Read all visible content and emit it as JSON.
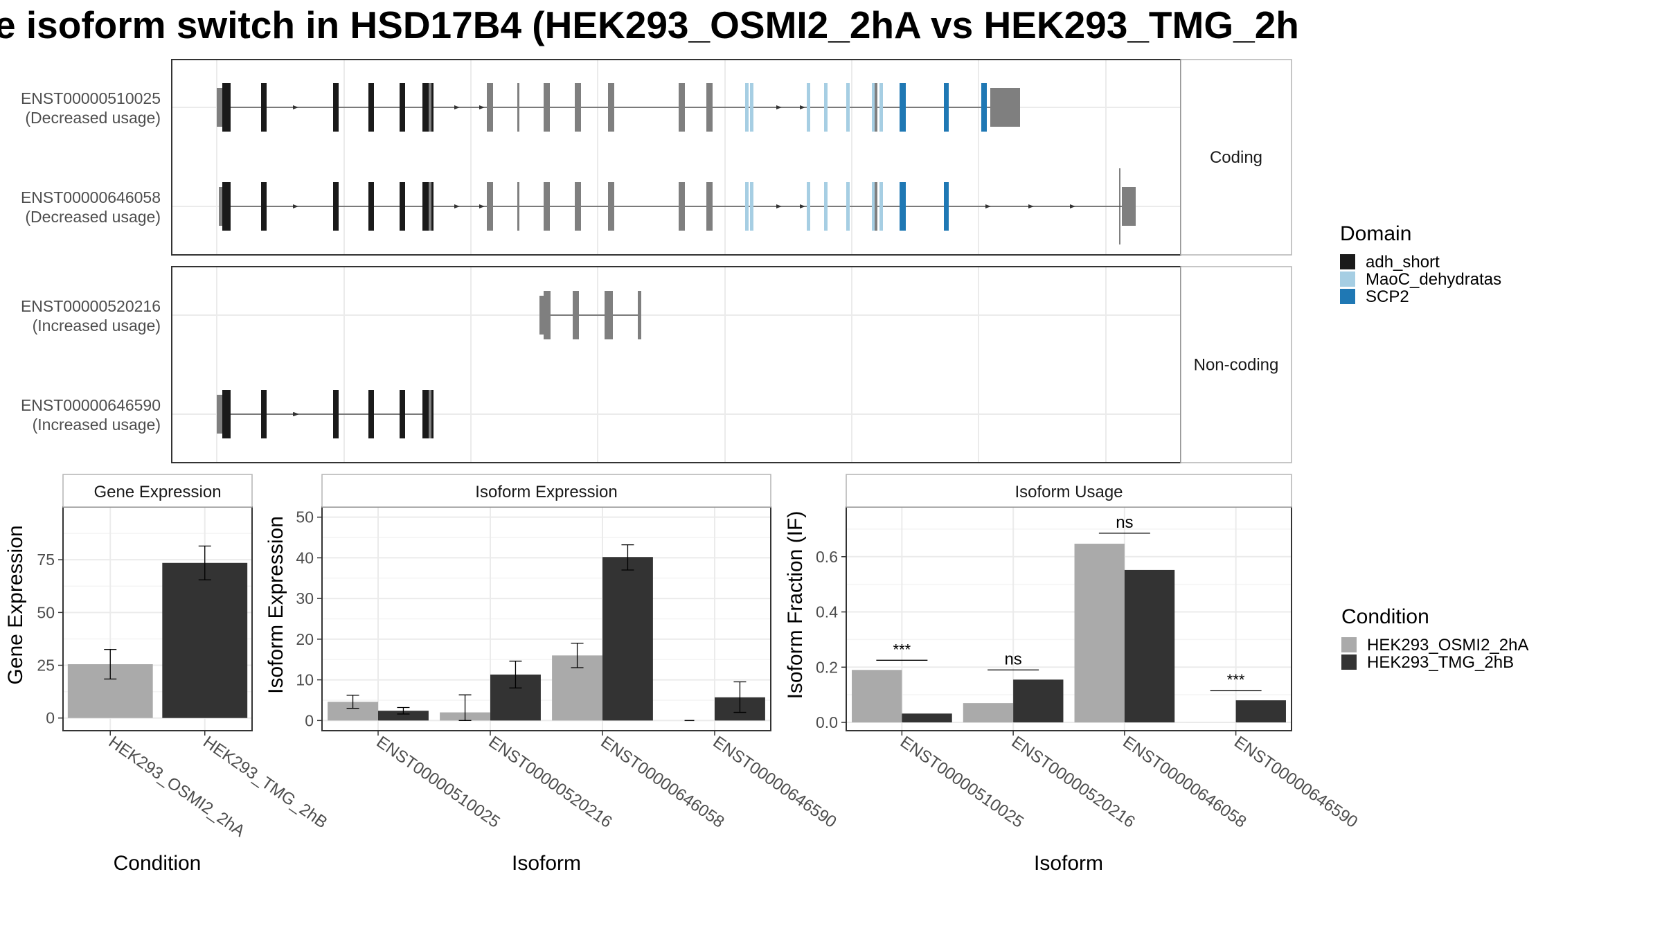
{
  "title": "e isoform switch in HSD17B4 (HEK293_OSMI2_2hA vs HEK293_TMG_2h",
  "colors": {
    "condition_a": "#aaaaaa",
    "condition_b": "#333333",
    "adh_short": "#1a1a1a",
    "MaoC_dehydratas": "#a6cee3",
    "SCP2": "#1f78b4",
    "utr": "#7f7f7f",
    "grid": "#ebebeb",
    "panel_border": "#333333",
    "strip_border": "#b3b3b3"
  },
  "structure": {
    "facets": [
      {
        "label": "Coding",
        "transcripts": [
          {
            "id": "ENST00000510025",
            "usage": "(Decreased usage)"
          },
          {
            "id": "ENST00000646058",
            "usage": "(Decreased usage)"
          }
        ]
      },
      {
        "label": "Non-coding",
        "transcripts": [
          {
            "id": "ENST00000520216",
            "usage": "(Increased usage)"
          },
          {
            "id": "ENST00000646590",
            "usage": "(Increased usage)"
          }
        ]
      }
    ],
    "domain_legend": {
      "title": "Domain",
      "items": [
        {
          "name": "adh_short",
          "color": "#1a1a1a"
        },
        {
          "name": "MaoC_dehydratas",
          "color": "#a6cee3"
        },
        {
          "name": "SCP2",
          "color": "#1f78b4"
        }
      ]
    }
  },
  "condition_legend": {
    "title": "Condition",
    "items": [
      {
        "name": "HEK293_OSMI2_2hA",
        "color": "#aaaaaa"
      },
      {
        "name": "HEK293_TMG_2hB",
        "color": "#333333"
      }
    ]
  },
  "chart_data": [
    {
      "type": "bar",
      "title": "Gene Expression",
      "xlabel": "Condition",
      "ylabel": "Gene Expression",
      "categories": [
        "HEK293_OSMI2_2hA",
        "HEK293_TMG_2hB"
      ],
      "values": [
        25.5,
        73.5
      ],
      "error_low": [
        18.5,
        65.5
      ],
      "error_high": [
        32.5,
        81.5
      ],
      "ylim": [
        -6,
        100
      ],
      "yticks": [
        0,
        25,
        50,
        75
      ],
      "grid": true
    },
    {
      "type": "bar",
      "title": "Isoform Expression",
      "xlabel": "Isoform",
      "ylabel": "Isoform Expression",
      "categories": [
        "ENST00000510025",
        "ENST00000520216",
        "ENST00000646058",
        "ENST00000646590"
      ],
      "series": [
        {
          "name": "HEK293_OSMI2_2hA",
          "values": [
            4.6,
            2.0,
            16.0,
            0.0
          ],
          "error_low": [
            3.0,
            0.0,
            13.0,
            0.0
          ],
          "error_high": [
            6.2,
            6.3,
            19.0,
            0.0
          ]
        },
        {
          "name": "HEK293_TMG_2hB",
          "values": [
            2.4,
            11.3,
            40.2,
            5.7
          ],
          "error_low": [
            1.6,
            8.0,
            37.0,
            2.0
          ],
          "error_high": [
            3.2,
            14.6,
            43.2,
            9.5
          ]
        }
      ],
      "ylim": [
        -2.5,
        52.5
      ],
      "yticks": [
        0,
        10,
        20,
        30,
        40,
        50
      ],
      "grid": true
    },
    {
      "type": "bar",
      "title": "Isoform Usage",
      "xlabel": "Isoform",
      "ylabel": "Isoform Fraction (IF)",
      "categories": [
        "ENST00000510025",
        "ENST00000520216",
        "ENST00000646058",
        "ENST00000646590"
      ],
      "series": [
        {
          "name": "HEK293_OSMI2_2hA",
          "values": [
            0.19,
            0.07,
            0.647,
            0.0
          ]
        },
        {
          "name": "HEK293_TMG_2hB",
          "values": [
            0.032,
            0.155,
            0.552,
            0.08
          ]
        }
      ],
      "significance": [
        "***",
        "ns",
        "ns",
        "***"
      ],
      "significance_y": [
        0.225,
        0.19,
        0.685,
        0.115
      ],
      "ylim": [
        -0.03,
        0.78
      ],
      "yticks": [
        0.0,
        0.2,
        0.4,
        0.6
      ],
      "ytick_labels": [
        "0.0",
        "0.2",
        "0.4",
        "0.6"
      ],
      "grid": true
    }
  ]
}
